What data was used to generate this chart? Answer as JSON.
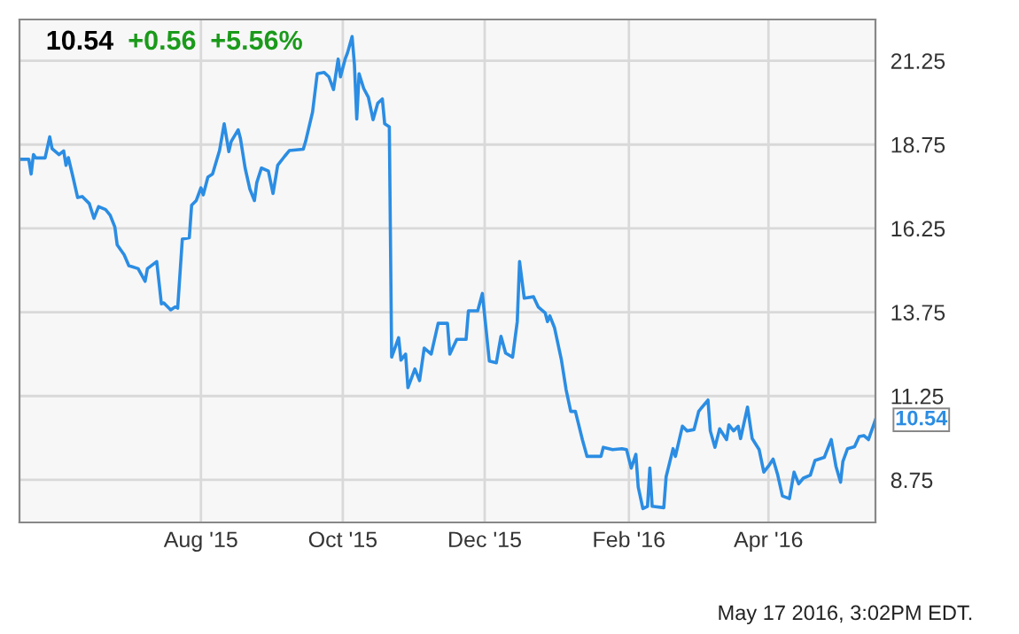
{
  "chart_data": {
    "type": "line",
    "x": [
      "2015-05-15",
      "2015-05-19",
      "2015-05-20",
      "2015-05-21",
      "2015-05-22",
      "2015-05-26",
      "2015-05-28",
      "2015-05-29",
      "2015-06-01",
      "2015-06-03",
      "2015-06-04",
      "2015-06-05",
      "2015-06-07",
      "2015-06-09",
      "2015-06-11",
      "2015-06-14",
      "2015-06-16",
      "2015-06-18",
      "2015-06-21",
      "2015-06-23",
      "2015-06-25",
      "2015-06-26",
      "2015-06-29",
      "2015-07-01",
      "2015-07-05",
      "2015-07-08",
      "2015-07-09",
      "2015-07-13",
      "2015-07-15",
      "2015-07-16",
      "2015-07-19",
      "2015-07-21",
      "2015-07-22",
      "2015-07-24",
      "2015-07-27",
      "2015-07-28",
      "2015-07-30",
      "2015-08-01",
      "2015-08-02",
      "2015-08-04",
      "2015-08-06",
      "2015-08-09",
      "2015-08-11",
      "2015-08-13",
      "2015-08-14",
      "2015-08-17",
      "2015-08-18",
      "2015-08-20",
      "2015-08-22",
      "2015-08-24",
      "2015-08-25",
      "2015-08-27",
      "2015-08-30",
      "2015-09-01",
      "2015-09-03",
      "2015-09-06",
      "2015-09-08",
      "2015-09-14",
      "2015-09-15",
      "2015-09-18",
      "2015-09-20",
      "2015-09-23",
      "2015-09-25",
      "2015-09-27",
      "2015-09-29",
      "2015-09-30",
      "2015-10-02",
      "2015-10-03",
      "2015-10-05",
      "2015-10-06",
      "2015-10-07",
      "2015-10-08",
      "2015-10-10",
      "2015-10-12",
      "2015-10-14",
      "2015-10-16",
      "2015-10-18",
      "2015-10-19",
      "2015-10-21",
      "2015-10-22",
      "2015-10-25",
      "2015-10-26",
      "2015-10-28",
      "2015-10-29",
      "2015-11-01",
      "2015-11-03",
      "2015-11-05",
      "2015-11-08",
      "2015-11-11",
      "2015-11-15",
      "2015-11-16",
      "2015-11-19",
      "2015-11-23",
      "2015-11-24",
      "2015-11-28",
      "2015-11-30",
      "2015-12-03",
      "2015-12-06",
      "2015-12-08",
      "2015-12-10",
      "2015-12-13",
      "2015-12-15",
      "2015-12-16",
      "2015-12-18",
      "2015-12-22",
      "2015-12-24",
      "2015-12-27",
      "2015-12-28",
      "2015-12-29",
      "2015-12-31",
      "2016-01-03",
      "2016-01-05",
      "2016-01-07",
      "2016-01-09",
      "2016-01-12",
      "2016-01-14",
      "2016-01-20",
      "2016-01-21",
      "2016-01-25",
      "2016-01-29",
      "2016-01-31",
      "2016-02-02",
      "2016-02-04",
      "2016-02-05",
      "2016-02-07",
      "2016-02-09",
      "2016-02-10",
      "2016-02-11",
      "2016-02-16",
      "2016-02-17",
      "2016-02-20",
      "2016-02-21",
      "2016-02-24",
      "2016-02-26",
      "2016-02-29",
      "2016-03-02",
      "2016-03-03",
      "2016-03-06",
      "2016-03-07",
      "2016-03-09",
      "2016-03-11",
      "2016-03-14",
      "2016-03-15",
      "2016-03-17",
      "2016-03-19",
      "2016-03-20",
      "2016-03-23",
      "2016-03-25",
      "2016-03-28",
      "2016-03-30",
      "2016-04-01",
      "2016-04-03",
      "2016-04-05",
      "2016-04-07",
      "2016-04-10",
      "2016-04-12",
      "2016-04-14",
      "2016-04-16",
      "2016-04-19",
      "2016-04-21",
      "2016-04-25",
      "2016-04-28",
      "2016-04-30",
      "2016-05-02",
      "2016-05-03",
      "2016-05-05",
      "2016-05-08",
      "2016-05-10",
      "2016-05-12",
      "2016-05-14",
      "2016-05-17"
    ],
    "series": [
      {
        "color": "#2b8de3",
        "values": [
          18.31,
          18.31,
          17.87,
          18.45,
          18.35,
          18.35,
          18.98,
          18.63,
          18.45,
          18.56,
          18.13,
          18.36,
          17.78,
          17.17,
          17.2,
          16.99,
          16.55,
          16.9,
          16.81,
          16.64,
          16.29,
          15.76,
          15.46,
          15.14,
          15.05,
          14.67,
          15.05,
          15.26,
          14.0,
          14.03,
          13.82,
          13.91,
          13.87,
          15.93,
          15.97,
          16.94,
          17.08,
          17.46,
          17.25,
          17.78,
          17.87,
          18.57,
          19.37,
          18.54,
          18.84,
          19.19,
          18.93,
          18.05,
          17.43,
          17.08,
          17.61,
          18.05,
          17.96,
          17.29,
          18.13,
          18.4,
          18.57,
          18.61,
          18.84,
          19.72,
          20.86,
          20.9,
          20.77,
          20.39,
          21.3,
          20.77,
          21.3,
          21.48,
          21.97,
          21.13,
          19.51,
          20.86,
          20.42,
          20.16,
          19.49,
          19.98,
          20.11,
          19.37,
          19.28,
          12.41,
          12.99,
          12.32,
          12.5,
          11.5,
          12.06,
          11.71,
          12.68,
          12.5,
          13.42,
          13.42,
          12.5,
          12.94,
          12.94,
          13.79,
          13.79,
          14.31,
          12.29,
          12.24,
          13.03,
          12.53,
          12.41,
          13.47,
          15.26,
          14.17,
          14.21,
          13.91,
          13.73,
          13.47,
          13.64,
          13.29,
          12.32,
          11.44,
          10.79,
          10.79,
          9.95,
          9.45,
          9.45,
          9.72,
          9.65,
          9.68,
          9.65,
          9.1,
          9.51,
          8.54,
          7.89,
          7.96,
          9.1,
          7.96,
          7.92,
          8.84,
          9.68,
          9.45,
          10.35,
          10.21,
          10.25,
          10.79,
          10.88,
          11.13,
          10.21,
          9.72,
          10.27,
          9.95,
          10.39,
          10.21,
          10.35,
          9.98,
          10.92,
          9.98,
          9.65,
          8.98,
          9.16,
          9.37,
          8.89,
          8.27,
          8.19,
          8.98,
          8.63,
          8.8,
          8.89,
          9.33,
          9.42,
          9.95,
          9.16,
          8.68,
          9.3,
          9.68,
          9.74,
          10.04,
          10.07,
          9.95,
          10.54
        ]
      }
    ],
    "xlim": [
      "2015-05-15",
      "2016-05-17"
    ],
    "xticks": [
      {
        "value": "2015-08-01",
        "label": "Aug '15"
      },
      {
        "value": "2015-10-01",
        "label": "Oct '15"
      },
      {
        "value": "2015-12-01",
        "label": "Dec '15"
      },
      {
        "value": "2016-02-01",
        "label": "Feb '16"
      },
      {
        "value": "2016-04-01",
        "label": "Apr '16"
      }
    ],
    "ylim": [
      7.48,
      22.48
    ],
    "yticks": [
      8.75,
      11.25,
      13.75,
      16.25,
      18.75,
      21.25
    ],
    "grid": true,
    "line_style": "solid",
    "annotations": [
      "10.54",
      "+0.56",
      "+5.56%",
      {
        "text": "10.54",
        "x": "2016-05-17",
        "y": 10.54
      },
      "May 17 2016, 3:02PM EDT."
    ]
  }
}
